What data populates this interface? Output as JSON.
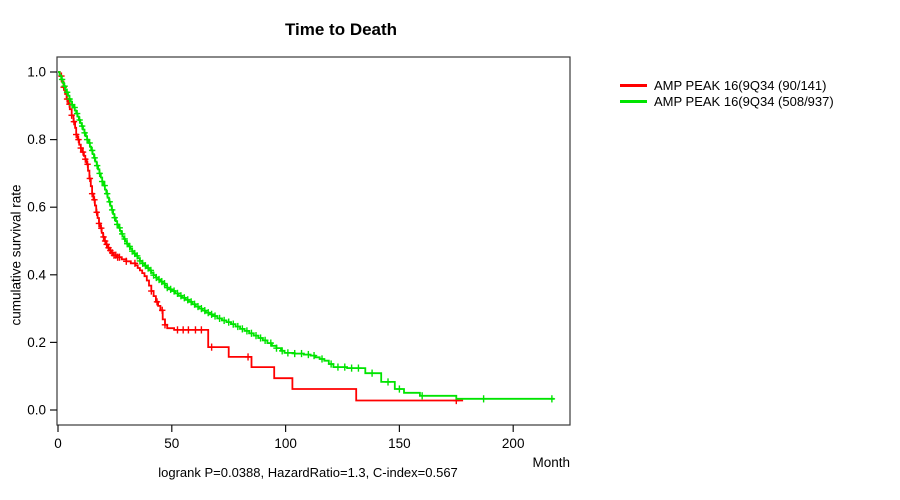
{
  "title": "Time to Death",
  "chart_data": {
    "type": "line",
    "subtype": "kaplan-meier-step",
    "title": "Time to Death",
    "xlabel": "Month",
    "ylabel": "cumulative survival rate",
    "footnote": "logrank P=0.0388, HazardRatio=1.3, C-index=0.567",
    "xlim": [
      0,
      225
    ],
    "ylim": [
      0.0,
      1.0
    ],
    "xticks": [
      0,
      50,
      100,
      150,
      200
    ],
    "ytick_labels": [
      "0.0",
      "0.2",
      "0.4",
      "0.6",
      "0.8",
      "1.0"
    ],
    "grid": false,
    "legend_position": "outside-right-top",
    "series": [
      {
        "name": "AMP PEAK 16(9Q34 (90/141)",
        "color": "#FF0000",
        "events": "90",
        "total": "141",
        "end_month": 178,
        "points": [
          [
            0,
            1.0
          ],
          [
            0.8,
            0.988
          ],
          [
            1.6,
            0.972
          ],
          [
            2.4,
            0.955
          ],
          [
            3.1,
            0.935
          ],
          [
            3.8,
            0.92
          ],
          [
            4.5,
            0.905
          ],
          [
            5.2,
            0.89
          ],
          [
            6,
            0.872
          ],
          [
            6.8,
            0.853
          ],
          [
            7.5,
            0.835
          ],
          [
            8,
            0.815
          ],
          [
            8.6,
            0.8
          ],
          [
            9.3,
            0.785
          ],
          [
            10,
            0.775
          ],
          [
            10.7,
            0.763
          ],
          [
            11.4,
            0.752
          ],
          [
            12,
            0.742
          ],
          [
            12.6,
            0.727
          ],
          [
            13.2,
            0.708
          ],
          [
            13.8,
            0.685
          ],
          [
            14.4,
            0.662
          ],
          [
            15,
            0.64
          ],
          [
            15.6,
            0.622
          ],
          [
            16.2,
            0.605
          ],
          [
            16.8,
            0.585
          ],
          [
            17.4,
            0.568
          ],
          [
            18,
            0.552
          ],
          [
            18.6,
            0.538
          ],
          [
            19.2,
            0.524
          ],
          [
            19.8,
            0.512
          ],
          [
            20.4,
            0.5
          ],
          [
            21,
            0.49
          ],
          [
            21.7,
            0.48
          ],
          [
            22.4,
            0.472
          ],
          [
            23.2,
            0.465
          ],
          [
            24,
            0.458
          ],
          [
            26,
            0.452
          ],
          [
            28,
            0.446
          ],
          [
            30,
            0.44
          ],
          [
            32,
            0.434
          ],
          [
            34,
            0.428
          ],
          [
            35,
            0.42
          ],
          [
            36,
            0.413
          ],
          [
            37,
            0.405
          ],
          [
            38,
            0.396
          ],
          [
            39,
            0.383
          ],
          [
            40,
            0.368
          ],
          [
            41,
            0.352
          ],
          [
            42,
            0.337
          ],
          [
            43,
            0.32
          ],
          [
            44,
            0.308
          ],
          [
            45,
            0.295
          ],
          [
            46,
            0.268
          ],
          [
            47,
            0.252
          ],
          [
            48,
            0.242
          ],
          [
            51,
            0.237
          ],
          [
            66,
            0.186
          ],
          [
            75,
            0.157
          ],
          [
            85,
            0.127
          ],
          [
            95,
            0.094
          ],
          [
            103,
            0.062
          ],
          [
            131,
            0.028
          ]
        ],
        "censor_months": [
          1.5,
          2.5,
          4,
          5,
          6,
          7,
          8,
          9,
          10,
          11,
          12,
          13,
          14,
          15,
          16,
          17,
          18,
          19,
          20,
          20.7,
          21.4,
          22.2,
          23,
          23.8,
          24.6,
          25.4,
          26.2,
          27,
          30,
          33.8,
          41,
          43.5,
          45.8,
          47,
          52.5,
          55,
          57.3,
          60.4,
          63,
          67.5,
          83.5,
          175
        ]
      },
      {
        "name": "AMP PEAK 16(9Q34 (508/937)",
        "color": "#00E400",
        "events": "508",
        "total": "937",
        "end_month": 218,
        "points": [
          [
            0,
            1.0
          ],
          [
            0.7,
            0.99
          ],
          [
            1.4,
            0.978
          ],
          [
            2,
            0.968
          ],
          [
            2.6,
            0.958
          ],
          [
            3.2,
            0.948
          ],
          [
            3.8,
            0.94
          ],
          [
            4.4,
            0.93
          ],
          [
            5,
            0.92
          ],
          [
            5.6,
            0.912
          ],
          [
            6.2,
            0.903
          ],
          [
            6.8,
            0.895
          ],
          [
            7.4,
            0.886
          ],
          [
            8,
            0.877
          ],
          [
            8.6,
            0.868
          ],
          [
            9.2,
            0.858
          ],
          [
            9.8,
            0.849
          ],
          [
            10.4,
            0.84
          ],
          [
            11,
            0.83
          ],
          [
            11.6,
            0.82
          ],
          [
            12.2,
            0.81
          ],
          [
            12.8,
            0.8
          ],
          [
            13.4,
            0.79
          ],
          [
            14,
            0.779
          ],
          [
            14.6,
            0.768
          ],
          [
            15.2,
            0.757
          ],
          [
            15.8,
            0.746
          ],
          [
            16.4,
            0.735
          ],
          [
            17,
            0.723
          ],
          [
            17.6,
            0.712
          ],
          [
            18.2,
            0.7
          ],
          [
            18.8,
            0.688
          ],
          [
            19.4,
            0.676
          ],
          [
            20,
            0.664
          ],
          [
            20.6,
            0.652
          ],
          [
            21.2,
            0.64
          ],
          [
            21.8,
            0.628
          ],
          [
            22.4,
            0.616
          ],
          [
            23,
            0.604
          ],
          [
            23.6,
            0.592
          ],
          [
            24.2,
            0.58
          ],
          [
            24.8,
            0.569
          ],
          [
            25.4,
            0.559
          ],
          [
            26,
            0.549
          ],
          [
            26.6,
            0.539
          ],
          [
            27.2,
            0.53
          ],
          [
            27.8,
            0.521
          ],
          [
            28.4,
            0.513
          ],
          [
            29,
            0.506
          ],
          [
            29.6,
            0.499
          ],
          [
            30.2,
            0.492
          ],
          [
            31,
            0.484
          ],
          [
            31.8,
            0.477
          ],
          [
            32.6,
            0.47
          ],
          [
            33.4,
            0.463
          ],
          [
            34.2,
            0.456
          ],
          [
            35,
            0.449
          ],
          [
            36,
            0.441
          ],
          [
            37,
            0.434
          ],
          [
            38,
            0.427
          ],
          [
            39,
            0.42
          ],
          [
            40,
            0.413
          ],
          [
            41,
            0.406
          ],
          [
            42,
            0.399
          ],
          [
            43,
            0.392
          ],
          [
            44,
            0.386
          ],
          [
            45,
            0.38
          ],
          [
            46,
            0.374
          ],
          [
            47,
            0.368
          ],
          [
            48,
            0.362
          ],
          [
            49,
            0.357
          ],
          [
            50,
            0.352
          ],
          [
            51.5,
            0.345
          ],
          [
            53,
            0.338
          ],
          [
            54.5,
            0.332
          ],
          [
            56,
            0.326
          ],
          [
            57.5,
            0.32
          ],
          [
            59,
            0.313
          ],
          [
            60.5,
            0.306
          ],
          [
            62,
            0.3
          ],
          [
            63.5,
            0.294
          ],
          [
            65,
            0.288
          ],
          [
            66.5,
            0.283
          ],
          [
            68,
            0.278
          ],
          [
            70,
            0.271
          ],
          [
            72,
            0.265
          ],
          [
            74,
            0.26
          ],
          [
            76,
            0.254
          ],
          [
            78,
            0.247
          ],
          [
            80,
            0.24
          ],
          [
            82,
            0.234
          ],
          [
            84,
            0.227
          ],
          [
            86,
            0.22
          ],
          [
            88,
            0.213
          ],
          [
            90,
            0.206
          ],
          [
            92,
            0.198
          ],
          [
            94,
            0.19
          ],
          [
            96,
            0.183
          ],
          [
            98,
            0.175
          ],
          [
            99.5,
            0.169
          ],
          [
            104,
            0.167
          ],
          [
            108,
            0.164
          ],
          [
            111,
            0.161
          ],
          [
            113,
            0.156
          ],
          [
            115,
            0.151
          ],
          [
            117,
            0.146
          ],
          [
            119,
            0.136
          ],
          [
            121,
            0.127
          ],
          [
            127,
            0.124
          ],
          [
            135,
            0.109
          ],
          [
            142,
            0.083
          ],
          [
            148,
            0.062
          ],
          [
            152,
            0.051
          ],
          [
            159,
            0.042
          ],
          [
            175,
            0.033
          ]
        ],
        "censor_months": [
          1.8,
          2.9,
          4,
          5.1,
          6.2,
          7.3,
          8.4,
          9.5,
          10.6,
          11.7,
          12.8,
          13.9,
          15,
          16.1,
          17.2,
          18.3,
          19.4,
          20.5,
          21.6,
          22.7,
          23.8,
          24.9,
          26,
          27.1,
          28.2,
          29.3,
          30.4,
          31.5,
          32.6,
          33.7,
          34.8,
          36,
          37.2,
          38.4,
          39.6,
          40.8,
          42,
          43.2,
          44.4,
          45.6,
          46.8,
          48,
          49.5,
          51,
          52.5,
          54,
          55.5,
          57,
          58.5,
          60,
          61.5,
          63,
          64.5,
          66,
          67.5,
          69,
          71,
          73,
          75,
          77,
          79,
          81,
          83,
          85,
          87,
          89,
          91,
          93.5,
          96,
          98.5,
          101,
          104,
          107,
          110,
          112.5,
          116,
          120,
          123,
          126,
          129,
          132,
          138,
          145,
          150,
          160,
          187,
          217
        ]
      }
    ]
  }
}
